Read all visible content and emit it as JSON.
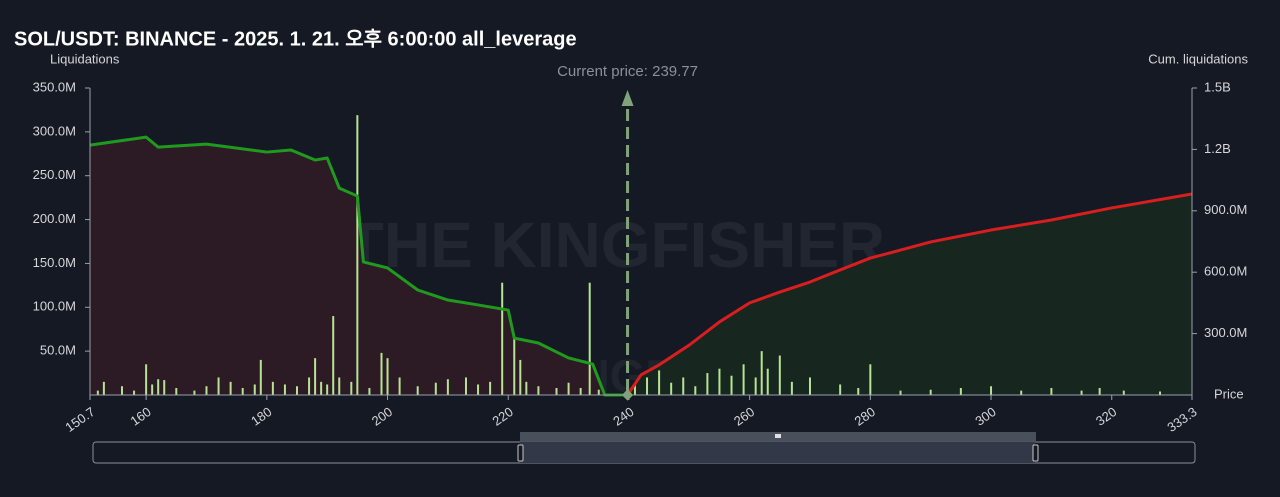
{
  "chart_data": {
    "type": "bar",
    "title": "SOL/USDT: BINANCE - 2025. 1. 21. 오후 6:00:00 all_leverage",
    "y_label": "Liquidations",
    "y2_label": "Cum. liquidations",
    "x_label": "Price",
    "watermark": {
      "text": "THE KINGFISHER",
      "suffix": ".io"
    },
    "annotation": {
      "text": "Current price: 239.77",
      "x": 239.77,
      "color": "#7fa37a"
    },
    "xlim": [
      150.7,
      333.3
    ],
    "xticks": [
      150.7,
      160,
      180,
      200,
      220,
      240,
      260,
      280,
      300,
      320,
      333.3
    ],
    "ylim": [
      0,
      350000000
    ],
    "yticks": [
      {
        "value": 50000000,
        "label": "50.0M"
      },
      {
        "value": 100000000,
        "label": "100.0M"
      },
      {
        "value": 150000000,
        "label": "150.0M"
      },
      {
        "value": 200000000,
        "label": "200.0M"
      },
      {
        "value": 250000000,
        "label": "250.0M"
      },
      {
        "value": 300000000,
        "label": "300.0M"
      },
      {
        "value": 350000000,
        "label": "350.0M"
      }
    ],
    "y2lim": [
      0,
      1500000000
    ],
    "y2ticks": [
      {
        "value": 300000000,
        "label": "300.0M"
      },
      {
        "value": 600000000,
        "label": "600.0M"
      },
      {
        "value": 900000000,
        "label": "900.0M"
      },
      {
        "value": 1200000000,
        "label": "1.2B"
      },
      {
        "value": 1500000000,
        "label": "1.5B"
      }
    ],
    "series": [
      {
        "type": "area",
        "axis": "y2",
        "color": "#1f9a1f",
        "fill": "#2c1a24",
        "x": [
          150.7,
          160,
          162,
          170,
          180,
          184,
          188,
          190,
          192,
          195,
          196,
          200,
          205,
          210,
          215,
          220,
          221,
          225,
          230,
          234,
          236,
          239.77
        ],
        "values": [
          1221000000,
          1260000000,
          1211000000,
          1226000000,
          1187000000,
          1197000000,
          1148000000,
          1158000000,
          1011000000,
          972000000,
          650000000,
          621000000,
          513000000,
          464000000,
          440000000,
          415000000,
          278000000,
          254000000,
          181000000,
          151000000,
          0,
          0
        ]
      },
      {
        "type": "area",
        "axis": "y2",
        "color": "#d81e1e",
        "fill": "#17261f",
        "x": [
          239.77,
          242,
          245,
          250,
          255,
          260,
          265,
          270,
          275,
          280,
          285,
          290,
          300,
          310,
          320,
          333.3
        ],
        "values": [
          0,
          98000000,
          147000000,
          244000000,
          357000000,
          450000000,
          503000000,
          552000000,
          611000000,
          669000000,
          708000000,
          748000000,
          806000000,
          855000000,
          914000000,
          982000000
        ]
      },
      {
        "type": "bar",
        "color": "#b7e394",
        "x": [
          152,
          153,
          156,
          158,
          160,
          161,
          162,
          163,
          165,
          168,
          170,
          172,
          174,
          176,
          178,
          179,
          181,
          183,
          185,
          187,
          188,
          189,
          190,
          191,
          192,
          194,
          195,
          197,
          199,
          200,
          202,
          205,
          208,
          210,
          213,
          215,
          217,
          219,
          221,
          222,
          223,
          225,
          228,
          230,
          232,
          233.5,
          235,
          241,
          243,
          245,
          247,
          249,
          251,
          253,
          255,
          257,
          259,
          261,
          262,
          263,
          265,
          267,
          270,
          275,
          278,
          280,
          285,
          290,
          295,
          300,
          305,
          310,
          315,
          318,
          322,
          328
        ],
        "values": [
          5000000,
          15000000,
          10000000,
          5000000,
          35000000,
          12000000,
          18000000,
          17000000,
          8000000,
          5000000,
          10000000,
          20000000,
          15000000,
          8000000,
          12000000,
          40000000,
          15000000,
          12000000,
          10000000,
          20000000,
          42000000,
          15000000,
          12000000,
          90000000,
          20000000,
          15000000,
          319000000,
          8000000,
          48000000,
          42000000,
          20000000,
          10000000,
          14000000,
          18000000,
          20000000,
          12000000,
          15000000,
          128000000,
          65000000,
          40000000,
          15000000,
          10000000,
          8000000,
          14000000,
          8000000,
          128000000,
          6000000,
          12000000,
          20000000,
          28000000,
          14000000,
          20000000,
          10000000,
          25000000,
          30000000,
          22000000,
          35000000,
          20000000,
          50000000,
          30000000,
          45000000,
          15000000,
          20000000,
          12000000,
          8000000,
          35000000,
          5000000,
          6000000,
          8000000,
          10000000,
          5000000,
          8000000,
          5000000,
          8000000,
          5000000,
          4000000
        ]
      }
    ]
  }
}
